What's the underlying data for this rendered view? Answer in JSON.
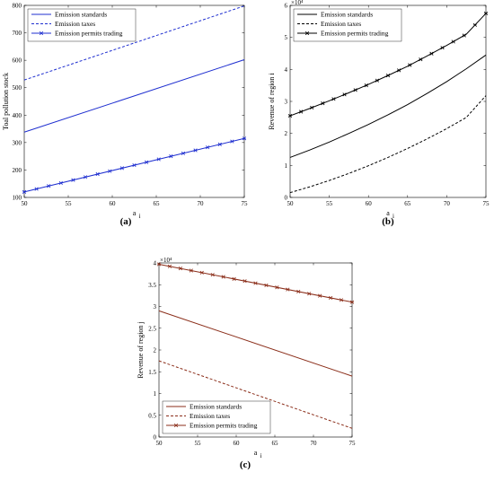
{
  "chart_data": [
    {
      "type": "line",
      "panel": "a",
      "caption": "(a)",
      "xlabel": "a",
      "xlabel_sub": "i",
      "ylabel": "Toal pollution stock",
      "xlim": [
        50,
        75
      ],
      "ylim": [
        100,
        800
      ],
      "xticks": [
        "50",
        "55",
        "60",
        "65",
        "70",
        "75"
      ],
      "yticks": [
        "100",
        "200",
        "300",
        "400",
        "500",
        "600",
        "700",
        "800"
      ],
      "exponent": "",
      "legend_position": "top-left",
      "color": "#1f2fd0",
      "series": [
        {
          "name": "Emission standards",
          "style": "solid",
          "marker": false,
          "x": [
            50,
            75
          ],
          "y": [
            338,
            602
          ]
        },
        {
          "name": "Emission taxes",
          "style": "dashed",
          "marker": false,
          "x": [
            50,
            75
          ],
          "y": [
            528,
            798
          ]
        },
        {
          "name": "Emission permits trading",
          "style": "solid",
          "marker": true,
          "x": [
            50,
            75
          ],
          "y": [
            120,
            315
          ]
        }
      ]
    },
    {
      "type": "line",
      "panel": "b",
      "caption": "(b)",
      "xlabel": "a",
      "xlabel_sub": "i",
      "ylabel": "Revenue of region i",
      "xlim": [
        50,
        75
      ],
      "ylim": [
        0,
        6
      ],
      "xticks": [
        "50",
        "55",
        "60",
        "65",
        "70",
        "75"
      ],
      "yticks": [
        "0",
        "1",
        "2",
        "3",
        "4",
        "5",
        "6"
      ],
      "exponent": "×10⁴",
      "legend_position": "top-left",
      "color": "#000000",
      "series": [
        {
          "name": "Emission standards",
          "style": "solid",
          "marker": false,
          "x": [
            50,
            52.5,
            55,
            57.5,
            60,
            62.5,
            65,
            67.5,
            70,
            72.5,
            75
          ],
          "y": [
            1.25,
            1.48,
            1.73,
            2.0,
            2.28,
            2.58,
            2.9,
            3.25,
            3.62,
            4.02,
            4.45
          ]
        },
        {
          "name": "Emission taxes",
          "style": "dashed",
          "marker": false,
          "x": [
            50,
            52.5,
            55,
            57.5,
            60,
            62.5,
            65,
            67.5,
            70,
            72.5,
            75
          ],
          "y": [
            0.15,
            0.33,
            0.53,
            0.75,
            0.99,
            1.25,
            1.53,
            1.83,
            2.15,
            2.5,
            3.18
          ]
        },
        {
          "name": "Emission permits trading",
          "style": "solid",
          "marker": true,
          "x": [
            50,
            52.5,
            55,
            57.5,
            60,
            62.5,
            65,
            67.5,
            70,
            72.5,
            75
          ],
          "y": [
            2.55,
            2.78,
            3.02,
            3.27,
            3.53,
            3.81,
            4.1,
            4.42,
            4.75,
            5.1,
            5.75
          ]
        }
      ]
    },
    {
      "type": "line",
      "panel": "c",
      "caption": "(c)",
      "xlabel": "a",
      "xlabel_sub": "i",
      "ylabel": "Revenue of region j",
      "xlim": [
        50,
        75
      ],
      "ylim": [
        0,
        4
      ],
      "xticks": [
        "50",
        "55",
        "60",
        "65",
        "70",
        "75"
      ],
      "yticks": [
        "0",
        "0.5",
        "1",
        "1.5",
        "2",
        "2.5",
        "3",
        "3.5",
        "4"
      ],
      "exponent": "×10⁴",
      "legend_position": "bottom-left",
      "color": "#8b2e1a",
      "series": [
        {
          "name": "Emission standards",
          "style": "solid",
          "marker": false,
          "x": [
            50,
            75
          ],
          "y": [
            2.9,
            1.4
          ]
        },
        {
          "name": "Emission taxes",
          "style": "dashed",
          "marker": false,
          "x": [
            50,
            75
          ],
          "y": [
            1.75,
            0.2
          ]
        },
        {
          "name": "Emission permits trading",
          "style": "solid",
          "marker": true,
          "x": [
            50,
            75
          ],
          "y": [
            3.97,
            3.1
          ]
        }
      ]
    }
  ]
}
